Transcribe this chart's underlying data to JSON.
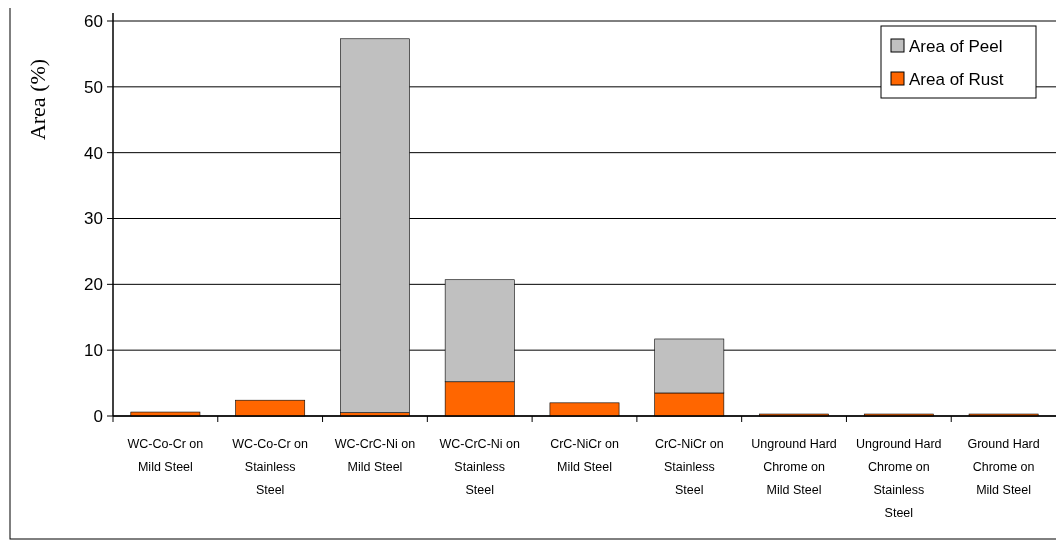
{
  "chart_data": {
    "type": "bar",
    "ylabel": "Area (%)",
    "stacked": true,
    "categories": [
      "WC-Co-Cr on Mild Steel",
      "WC-Co-Cr on Stainless Steel",
      "WC-CrC-Ni on Mild Steel",
      "WC-CrC-Ni on Stainless Steel",
      "CrC-NiCr on Mild Steel",
      "CrC-NiCr on Stainless Steel",
      "Unground Hard Chrome on Mild Steel",
      "Unground Hard Chrome on Stainless Steel",
      "Ground Hard Chrome on Mild Steel"
    ],
    "series": [
      {
        "name": "Area of Rust",
        "color": "#ff6600",
        "values": [
          0.6,
          2.4,
          0.5,
          5.2,
          2.0,
          3.5,
          0.3,
          0.3,
          0.3
        ]
      },
      {
        "name": "Area of Peel",
        "color": "#c0c0c0",
        "values": [
          0,
          0,
          56.8,
          15.5,
          0,
          8.2,
          0,
          0,
          0
        ]
      }
    ],
    "ylim": [
      0,
      60
    ],
    "yticks": [
      0,
      10,
      20,
      30,
      40,
      50,
      60
    ],
    "grid": "y",
    "legend": "top right"
  }
}
